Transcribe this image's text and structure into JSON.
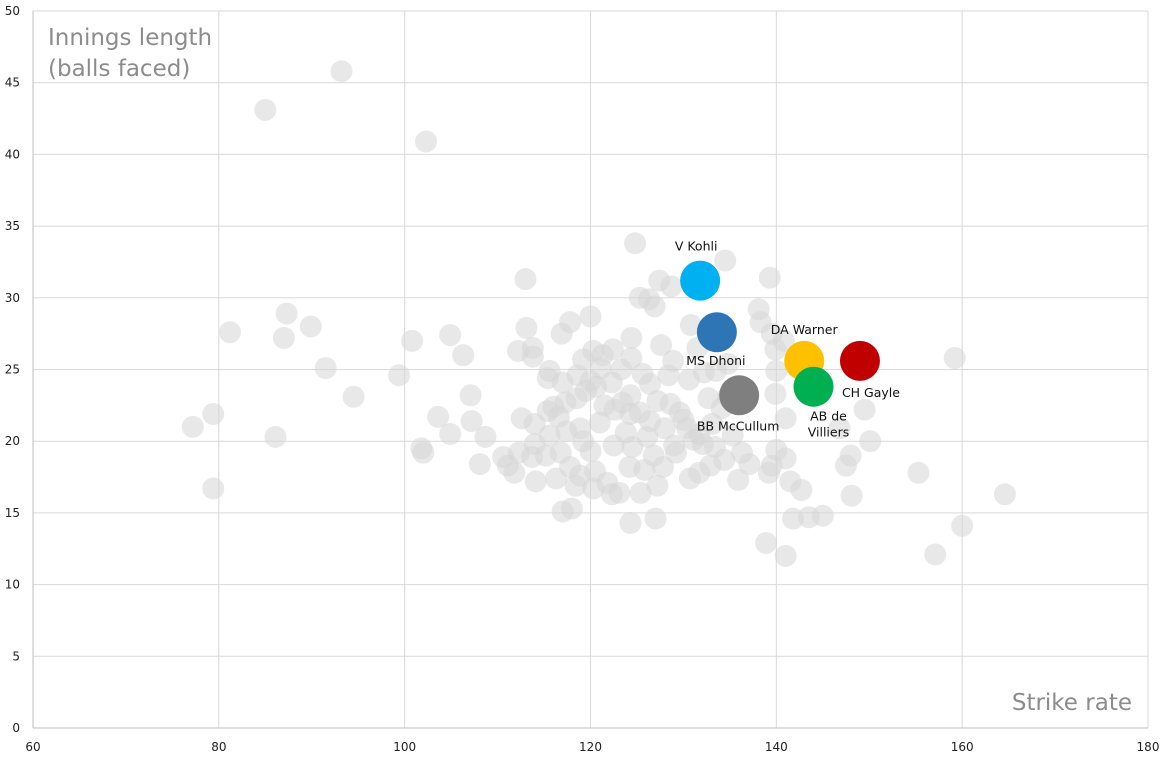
{
  "chart_data": {
    "type": "scatter",
    "ylabel_lines": [
      "Innings length",
      "(balls faced)"
    ],
    "xlabel": "Strike rate",
    "xlim": [
      60,
      180
    ],
    "ylim": [
      0,
      50
    ],
    "x_ticks": [
      60,
      80,
      100,
      120,
      140,
      160,
      180
    ],
    "y_ticks": [
      0,
      5,
      10,
      15,
      20,
      25,
      30,
      35,
      40,
      45,
      50
    ],
    "grid": true,
    "background_color": "#d6d6d6",
    "highlighted": [
      {
        "name": "V Kohli",
        "x": 131.8,
        "y": 31.2,
        "color": "#00b0f0"
      },
      {
        "name": "MS Dhoni",
        "x": 133.6,
        "y": 27.6,
        "color": "#2e75b6"
      },
      {
        "name": "DA Warner",
        "x": 143.0,
        "y": 25.6,
        "color": "#ffc000"
      },
      {
        "name": "CH Gayle",
        "x": 149.0,
        "y": 25.6,
        "color": "#c00000"
      },
      {
        "name": "AB de Villiers",
        "label_lines": [
          "AB de",
          "Villiers"
        ],
        "x": 144.0,
        "y": 23.8,
        "color": "#00b050"
      },
      {
        "name": "BB McCullum",
        "x": 136.0,
        "y": 23.2,
        "color": "#7f7f7f"
      }
    ],
    "background_points": [
      [
        93.2,
        45.8
      ],
      [
        85.0,
        43.1
      ],
      [
        102.3,
        40.9
      ],
      [
        124.8,
        33.8
      ],
      [
        113.0,
        31.3
      ],
      [
        139.3,
        31.4
      ],
      [
        134.5,
        32.6
      ],
      [
        87.3,
        28.9
      ],
      [
        81.2,
        27.6
      ],
      [
        89.9,
        28.0
      ],
      [
        87.0,
        27.2
      ],
      [
        100.8,
        27.0
      ],
      [
        104.9,
        27.4
      ],
      [
        106.3,
        26.0
      ],
      [
        91.5,
        25.1
      ],
      [
        99.4,
        24.6
      ],
      [
        94.5,
        23.1
      ],
      [
        77.2,
        21.0
      ],
      [
        79.4,
        21.9
      ],
      [
        86.1,
        20.3
      ],
      [
        79.4,
        16.7
      ],
      [
        103.6,
        21.7
      ],
      [
        104.9,
        20.5
      ],
      [
        101.8,
        19.5
      ],
      [
        102.0,
        19.2
      ],
      [
        107.1,
        23.2
      ],
      [
        107.2,
        21.4
      ],
      [
        108.7,
        20.3
      ],
      [
        108.1,
        18.4
      ],
      [
        111.1,
        18.3
      ],
      [
        111.8,
        17.8
      ],
      [
        112.2,
        26.3
      ],
      [
        113.1,
        27.9
      ],
      [
        113.8,
        26.5
      ],
      [
        115.6,
        24.9
      ],
      [
        116.9,
        27.5
      ],
      [
        117.8,
        28.3
      ],
      [
        120.0,
        28.7
      ],
      [
        120.3,
        26.3
      ],
      [
        121.3,
        26.0
      ],
      [
        122.4,
        26.4
      ],
      [
        124.4,
        25.8
      ],
      [
        125.3,
        30.0
      ],
      [
        126.3,
        29.9
      ],
      [
        126.9,
        29.4
      ],
      [
        127.4,
        31.2
      ],
      [
        128.7,
        30.8
      ],
      [
        130.8,
        28.1
      ],
      [
        131.5,
        26.5
      ],
      [
        132.2,
        24.8
      ],
      [
        133.5,
        24.9
      ],
      [
        134.8,
        25.4
      ],
      [
        134.8,
        23.1
      ],
      [
        138.1,
        29.2
      ],
      [
        138.3,
        28.3
      ],
      [
        139.5,
        27.5
      ],
      [
        139.9,
        26.4
      ],
      [
        140.8,
        27.0
      ],
      [
        140.0,
        24.9
      ],
      [
        139.9,
        23.3
      ],
      [
        141.0,
        21.6
      ],
      [
        140.0,
        19.4
      ],
      [
        141.0,
        18.8
      ],
      [
        139.2,
        17.8
      ],
      [
        139.5,
        18.3
      ],
      [
        141.5,
        17.2
      ],
      [
        142.7,
        16.6
      ],
      [
        141.8,
        14.6
      ],
      [
        143.5,
        14.7
      ],
      [
        145.0,
        14.8
      ],
      [
        138.9,
        12.9
      ],
      [
        141.0,
        12.0
      ],
      [
        146.8,
        20.9
      ],
      [
        147.5,
        18.3
      ],
      [
        148.0,
        19.0
      ],
      [
        149.5,
        22.2
      ],
      [
        150.1,
        20.0
      ],
      [
        148.1,
        16.2
      ],
      [
        155.3,
        17.8
      ],
      [
        157.1,
        12.1
      ],
      [
        159.2,
        25.8
      ],
      [
        160.0,
        14.1
      ],
      [
        164.6,
        16.3
      ],
      [
        112.6,
        21.6
      ],
      [
        114.0,
        21.2
      ],
      [
        115.4,
        22.1
      ],
      [
        116.0,
        22.4
      ],
      [
        116.6,
        21.7
      ],
      [
        117.3,
        22.7
      ],
      [
        118.5,
        23.0
      ],
      [
        119.5,
        23.5
      ],
      [
        120.6,
        23.8
      ],
      [
        121.5,
        22.5
      ],
      [
        122.6,
        22.2
      ],
      [
        123.4,
        22.7
      ],
      [
        124.3,
        21.9
      ],
      [
        125.3,
        22.0
      ],
      [
        126.4,
        21.4
      ],
      [
        127.2,
        22.8
      ],
      [
        128.6,
        22.6
      ],
      [
        129.6,
        22.0
      ],
      [
        130.4,
        20.9
      ],
      [
        131.1,
        20.1
      ],
      [
        132.1,
        19.8
      ],
      [
        133.4,
        19.6
      ],
      [
        135.3,
        20.4
      ],
      [
        136.3,
        19.2
      ],
      [
        137.1,
        18.4
      ],
      [
        130.6,
        24.3
      ],
      [
        128.4,
        24.6
      ],
      [
        126.4,
        24.0
      ],
      [
        124.3,
        23.2
      ],
      [
        122.3,
        24.1
      ],
      [
        120.0,
        24.2
      ],
      [
        118.6,
        24.6
      ],
      [
        117.0,
        24.1
      ],
      [
        115.4,
        24.4
      ],
      [
        113.8,
        25.9
      ],
      [
        112.3,
        19.2
      ],
      [
        113.7,
        18.9
      ],
      [
        115.2,
        19.0
      ],
      [
        116.8,
        19.2
      ],
      [
        117.8,
        18.2
      ],
      [
        118.9,
        17.6
      ],
      [
        120.5,
        17.9
      ],
      [
        121.8,
        17.1
      ],
      [
        123.1,
        16.4
      ],
      [
        124.2,
        18.2
      ],
      [
        125.8,
        18.0
      ],
      [
        127.8,
        18.2
      ],
      [
        129.2,
        19.2
      ],
      [
        130.7,
        17.4
      ],
      [
        131.7,
        17.8
      ],
      [
        132.9,
        18.3
      ],
      [
        134.4,
        18.7
      ],
      [
        135.9,
        17.3
      ],
      [
        114.1,
        17.2
      ],
      [
        116.3,
        17.4
      ],
      [
        118.4,
        16.9
      ],
      [
        120.3,
        16.7
      ],
      [
        122.3,
        16.3
      ],
      [
        125.4,
        16.4
      ],
      [
        127.2,
        16.9
      ],
      [
        117.0,
        15.1
      ],
      [
        118.0,
        15.3
      ],
      [
        124.3,
        14.3
      ],
      [
        127.0,
        14.6
      ],
      [
        121.0,
        21.3
      ],
      [
        123.8,
        20.6
      ],
      [
        126.1,
        20.3
      ],
      [
        128.0,
        20.9
      ],
      [
        130.0,
        21.5
      ],
      [
        119.2,
        20.0
      ],
      [
        120.0,
        19.3
      ],
      [
        122.5,
        19.7
      ],
      [
        124.5,
        19.6
      ],
      [
        126.8,
        19.0
      ],
      [
        129.0,
        19.7
      ],
      [
        131.7,
        20.5
      ],
      [
        133.1,
        21.2
      ],
      [
        134.1,
        22.3
      ],
      [
        132.7,
        23.0
      ],
      [
        123.3,
        25.0
      ],
      [
        125.6,
        24.7
      ],
      [
        127.6,
        26.7
      ],
      [
        128.9,
        25.6
      ],
      [
        121.1,
        25.1
      ],
      [
        119.2,
        25.7
      ],
      [
        124.4,
        27.2
      ],
      [
        114.0,
        19.8
      ],
      [
        115.6,
        20.4
      ],
      [
        117.4,
        20.7
      ],
      [
        118.9,
        20.9
      ],
      [
        110.6,
        18.9
      ]
    ]
  }
}
